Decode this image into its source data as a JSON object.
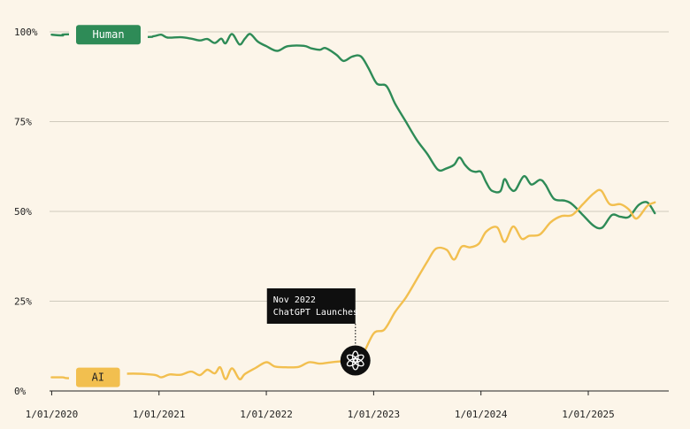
{
  "chart_data": {
    "type": "line",
    "y_tick_labels": [
      "100%",
      "75%",
      "50%",
      "25%",
      "0%"
    ],
    "y_tick_values": [
      100,
      75,
      50,
      25,
      0
    ],
    "ylim": [
      0,
      100
    ],
    "x_tick_labels": [
      "1/01/2020",
      "1/01/2021",
      "1/01/2022",
      "1/01/2023",
      "1/01/2024",
      "1/01/2025"
    ],
    "x_tick_values": [
      2020.0,
      2021.0,
      2022.0,
      2023.0,
      2024.0,
      2025.0
    ],
    "xlim": [
      2019.98,
      2025.75
    ],
    "grid": true,
    "series": [
      {
        "name": "Human",
        "color": "#2e8b57",
        "points": [
          [
            2020.0,
            99.2
          ],
          [
            2020.1,
            99.0
          ],
          [
            2020.17,
            99.3
          ],
          [
            2020.85,
            98.6
          ],
          [
            2020.95,
            98.8
          ],
          [
            2021.02,
            99.2
          ],
          [
            2021.08,
            98.4
          ],
          [
            2021.2,
            98.5
          ],
          [
            2021.3,
            98.1
          ],
          [
            2021.38,
            97.6
          ],
          [
            2021.45,
            98.0
          ],
          [
            2021.52,
            96.9
          ],
          [
            2021.58,
            98.1
          ],
          [
            2021.62,
            96.8
          ],
          [
            2021.68,
            99.4
          ],
          [
            2021.75,
            96.5
          ],
          [
            2021.8,
            98.1
          ],
          [
            2021.85,
            99.4
          ],
          [
            2021.92,
            97.3
          ],
          [
            2022.0,
            96.0
          ],
          [
            2022.1,
            94.7
          ],
          [
            2022.2,
            96.0
          ],
          [
            2022.35,
            96.1
          ],
          [
            2022.42,
            95.4
          ],
          [
            2022.5,
            95.0
          ],
          [
            2022.55,
            95.5
          ],
          [
            2022.65,
            93.7
          ],
          [
            2022.72,
            91.9
          ],
          [
            2022.8,
            93.1
          ],
          [
            2022.88,
            93.2
          ],
          [
            2022.95,
            90.0
          ],
          [
            2023.03,
            85.6
          ],
          [
            2023.12,
            84.9
          ],
          [
            2023.2,
            80.0
          ],
          [
            2023.3,
            75.0
          ],
          [
            2023.4,
            70.0
          ],
          [
            2023.5,
            66.0
          ],
          [
            2023.6,
            61.6
          ],
          [
            2023.68,
            62.0
          ],
          [
            2023.75,
            63.0
          ],
          [
            2023.8,
            65.0
          ],
          [
            2023.85,
            63.0
          ],
          [
            2023.9,
            61.5
          ],
          [
            2023.95,
            61.0
          ],
          [
            2024.0,
            61.0
          ],
          [
            2024.05,
            58.0
          ],
          [
            2024.1,
            55.8
          ],
          [
            2024.18,
            55.6
          ],
          [
            2024.22,
            59.0
          ],
          [
            2024.27,
            56.5
          ],
          [
            2024.32,
            55.9
          ],
          [
            2024.4,
            59.8
          ],
          [
            2024.47,
            57.5
          ],
          [
            2024.55,
            58.8
          ],
          [
            2024.6,
            57.5
          ],
          [
            2024.68,
            53.5
          ],
          [
            2024.78,
            53.0
          ],
          [
            2024.85,
            52.0
          ],
          [
            2024.95,
            49.0
          ],
          [
            2025.05,
            46.0
          ],
          [
            2025.13,
            45.5
          ],
          [
            2025.22,
            49.0
          ],
          [
            2025.3,
            48.5
          ],
          [
            2025.38,
            48.5
          ],
          [
            2025.47,
            51.8
          ],
          [
            2025.55,
            52.5
          ],
          [
            2025.62,
            49.5
          ]
        ]
      },
      {
        "name": "AI",
        "color": "#f2bf4f",
        "points": [
          [
            2020.0,
            3.8
          ],
          [
            2020.1,
            3.8
          ],
          [
            2020.2,
            3.6
          ],
          [
            2020.7,
            4.8
          ],
          [
            2020.95,
            4.5
          ],
          [
            2021.02,
            3.8
          ],
          [
            2021.1,
            4.6
          ],
          [
            2021.2,
            4.5
          ],
          [
            2021.3,
            5.4
          ],
          [
            2021.38,
            4.4
          ],
          [
            2021.45,
            5.9
          ],
          [
            2021.52,
            4.9
          ],
          [
            2021.57,
            6.6
          ],
          [
            2021.62,
            3.3
          ],
          [
            2021.68,
            6.3
          ],
          [
            2021.75,
            3.3
          ],
          [
            2021.8,
            4.7
          ],
          [
            2021.9,
            6.4
          ],
          [
            2022.0,
            8.0
          ],
          [
            2022.08,
            6.8
          ],
          [
            2022.18,
            6.6
          ],
          [
            2022.3,
            6.7
          ],
          [
            2022.4,
            8.0
          ],
          [
            2022.5,
            7.6
          ],
          [
            2022.58,
            7.9
          ],
          [
            2022.68,
            8.2
          ],
          [
            2022.78,
            8.1
          ],
          [
            2022.88,
            9.2
          ],
          [
            2023.0,
            16.0
          ],
          [
            2023.1,
            17.1
          ],
          [
            2023.2,
            22.0
          ],
          [
            2023.3,
            26.0
          ],
          [
            2023.4,
            31.0
          ],
          [
            2023.5,
            36.0
          ],
          [
            2023.58,
            39.6
          ],
          [
            2023.68,
            39.3
          ],
          [
            2023.75,
            36.6
          ],
          [
            2023.82,
            40.2
          ],
          [
            2023.9,
            40.0
          ],
          [
            2023.98,
            41.0
          ],
          [
            2024.05,
            44.4
          ],
          [
            2024.15,
            45.6
          ],
          [
            2024.22,
            41.5
          ],
          [
            2024.3,
            45.8
          ],
          [
            2024.38,
            42.4
          ],
          [
            2024.45,
            43.2
          ],
          [
            2024.55,
            43.6
          ],
          [
            2024.65,
            47.0
          ],
          [
            2024.75,
            48.7
          ],
          [
            2024.85,
            49.0
          ],
          [
            2024.95,
            52.0
          ],
          [
            2025.05,
            55.0
          ],
          [
            2025.12,
            55.8
          ],
          [
            2025.2,
            52.0
          ],
          [
            2025.3,
            52.0
          ],
          [
            2025.38,
            50.5
          ],
          [
            2025.45,
            48.0
          ],
          [
            2025.55,
            51.5
          ],
          [
            2025.62,
            52.5
          ]
        ]
      }
    ],
    "annotation": {
      "line1": "Nov 2022",
      "line2": "ChatGPT Launches",
      "x": 2022.83,
      "y": 8.5,
      "icon": "chatgpt-logo-icon"
    }
  }
}
